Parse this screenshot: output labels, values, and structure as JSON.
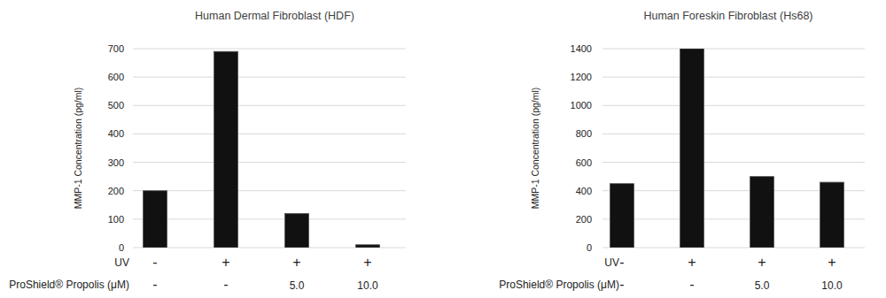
{
  "chart_data": [
    {
      "type": "bar",
      "title": "Human Dermal Fibroblast (HDF)",
      "y_label": "MMP-1 Concentration (pg/ml)",
      "categories": [
        null,
        null,
        null,
        null
      ],
      "category_rows": [
        {
          "name": "UV",
          "labels": [
            "-",
            "+",
            "+",
            "+"
          ]
        },
        {
          "name": "ProShield® Propolis (μM)",
          "labels": [
            "-",
            "-",
            "5.0",
            "10.0"
          ]
        }
      ],
      "values": [
        200,
        690,
        120,
        10
      ],
      "color": "#111111",
      "ylim": [
        0,
        700
      ],
      "yticks": [
        0,
        100,
        200,
        300,
        400,
        500,
        600,
        700
      ],
      "grid": true
    },
    {
      "type": "bar",
      "title": "Human Foreskin Fibroblast (Hs68)",
      "y_label": "MMP-1 Concentration (pg/ml)",
      "categories": [
        null,
        null,
        null,
        null
      ],
      "category_rows": [
        {
          "name": "UV",
          "labels": [
            "-",
            "+",
            "+",
            "+"
          ]
        },
        {
          "name": "ProShield® Propolis (μM)",
          "labels": [
            "-",
            "-",
            "5.0",
            "10.0"
          ]
        }
      ],
      "values": [
        450,
        1400,
        500,
        460
      ],
      "color": "#111111",
      "ylim": [
        0,
        1400
      ],
      "yticks": [
        0,
        200,
        400,
        600,
        800,
        1000,
        1200,
        1400
      ],
      "grid": true
    }
  ]
}
